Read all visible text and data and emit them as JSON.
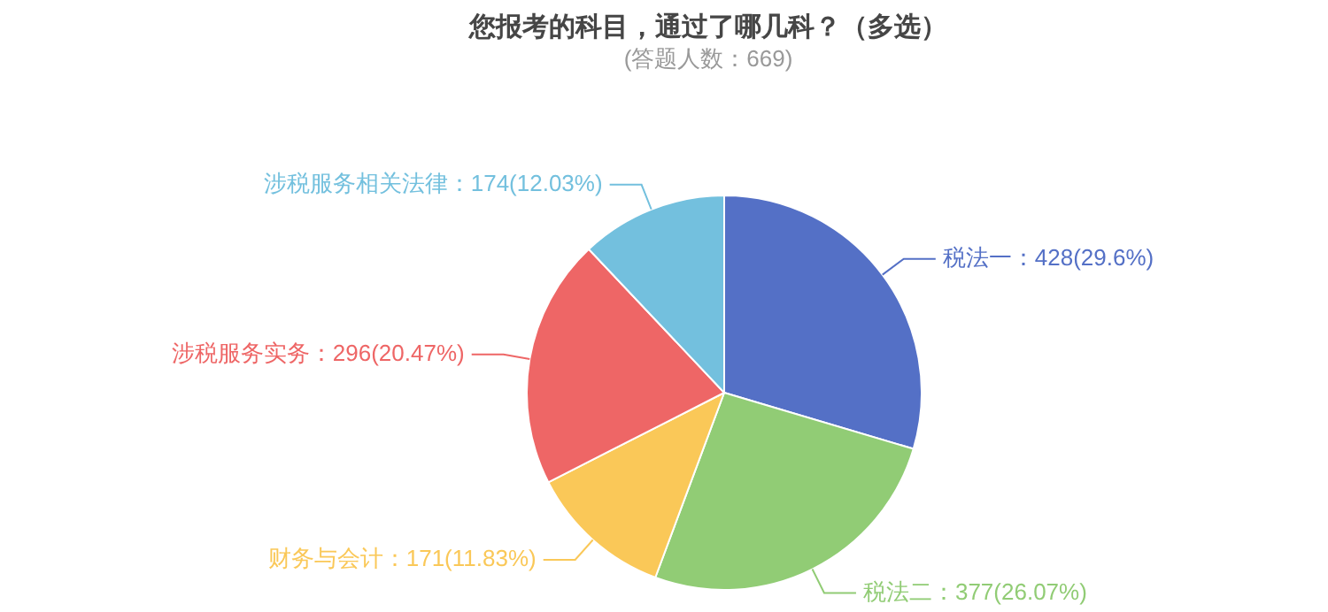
{
  "chart_data": {
    "type": "pie",
    "title": "您报考的科目，通过了哪几科？（多选）",
    "subtitle": "(答题人数：669)",
    "categories": [
      "税法一",
      "税法二",
      "财务与会计",
      "涉税服务实务",
      "涉税服务相关法律"
    ],
    "values": [
      428,
      377,
      171,
      296,
      174
    ],
    "colors": [
      "#5470c6",
      "#91cc75",
      "#fac858",
      "#ee6666",
      "#73c0de"
    ],
    "value_labels": [
      "428(29.6%)",
      "377(26.07%)",
      "171(11.83%)",
      "296(20.47%)",
      "174(12.03%)"
    ],
    "legend": false
  }
}
